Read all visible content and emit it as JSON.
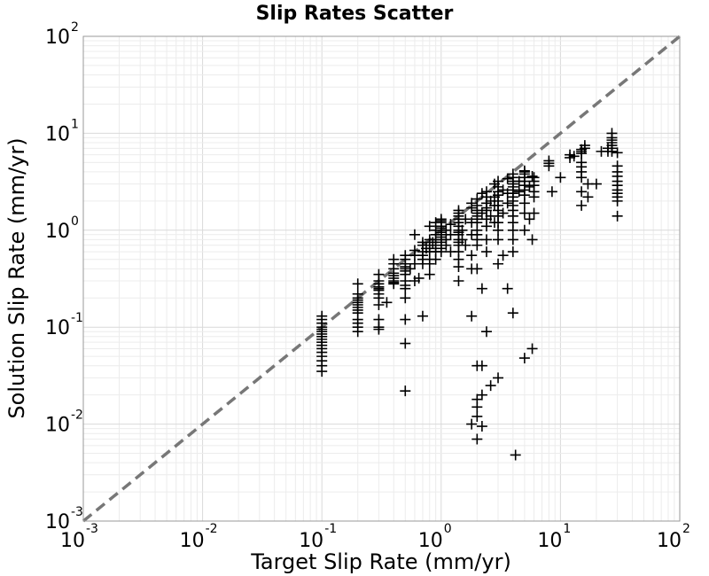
{
  "chart_data": {
    "type": "scatter",
    "title": "Slip Rates Scatter",
    "xlabel": "Target Slip Rate (mm/yr)",
    "ylabel": "Solution Slip Rate (mm/yr)",
    "xscale": "log",
    "yscale": "log",
    "xlim": [
      0.001,
      100
    ],
    "ylim": [
      0.001,
      100
    ],
    "grid": true,
    "marker": "plus",
    "marker_color": "#000000",
    "reference_line_color": "#777777",
    "reference_line": {
      "style": "dashed",
      "points": [
        [
          0.001,
          0.001
        ],
        [
          100,
          100
        ]
      ]
    },
    "x_ticks": [
      {
        "base": "10",
        "exp": "-3"
      },
      {
        "base": "10",
        "exp": "-2"
      },
      {
        "base": "10",
        "exp": "-1"
      },
      {
        "base": "10",
        "exp": "0"
      },
      {
        "base": "10",
        "exp": "1"
      },
      {
        "base": "10",
        "exp": "2"
      }
    ],
    "y_ticks": [
      {
        "base": "10",
        "exp": "-3"
      },
      {
        "base": "10",
        "exp": "-2"
      },
      {
        "base": "10",
        "exp": "-1"
      },
      {
        "base": "10",
        "exp": "0"
      },
      {
        "base": "10",
        "exp": "1"
      },
      {
        "base": "10",
        "exp": "2"
      }
    ],
    "points": [
      [
        0.1,
        0.13
      ],
      [
        0.1,
        0.12
      ],
      [
        0.1,
        0.11
      ],
      [
        0.1,
        0.1
      ],
      [
        0.1,
        0.095
      ],
      [
        0.1,
        0.09
      ],
      [
        0.1,
        0.085
      ],
      [
        0.1,
        0.08
      ],
      [
        0.1,
        0.075
      ],
      [
        0.1,
        0.07
      ],
      [
        0.1,
        0.065
      ],
      [
        0.1,
        0.06
      ],
      [
        0.1,
        0.055
      ],
      [
        0.1,
        0.05
      ],
      [
        0.1,
        0.045
      ],
      [
        0.1,
        0.04
      ],
      [
        0.1,
        0.035
      ],
      [
        0.2,
        0.28
      ],
      [
        0.2,
        0.22
      ],
      [
        0.2,
        0.2
      ],
      [
        0.2,
        0.19
      ],
      [
        0.2,
        0.18
      ],
      [
        0.2,
        0.17
      ],
      [
        0.2,
        0.16
      ],
      [
        0.2,
        0.15
      ],
      [
        0.2,
        0.14
      ],
      [
        0.2,
        0.12
      ],
      [
        0.2,
        0.11
      ],
      [
        0.2,
        0.1
      ],
      [
        0.2,
        0.09
      ],
      [
        0.3,
        0.35
      ],
      [
        0.3,
        0.3
      ],
      [
        0.3,
        0.28
      ],
      [
        0.3,
        0.26
      ],
      [
        0.3,
        0.25
      ],
      [
        0.3,
        0.24
      ],
      [
        0.3,
        0.22
      ],
      [
        0.3,
        0.2
      ],
      [
        0.3,
        0.17
      ],
      [
        0.3,
        0.12
      ],
      [
        0.3,
        0.1
      ],
      [
        0.3,
        0.095
      ],
      [
        0.35,
        0.18
      ],
      [
        0.4,
        0.5
      ],
      [
        0.4,
        0.45
      ],
      [
        0.4,
        0.4
      ],
      [
        0.4,
        0.36
      ],
      [
        0.4,
        0.34
      ],
      [
        0.4,
        0.32
      ],
      [
        0.4,
        0.3
      ],
      [
        0.4,
        0.29
      ],
      [
        0.4,
        0.28
      ],
      [
        0.5,
        0.55
      ],
      [
        0.5,
        0.5
      ],
      [
        0.5,
        0.45
      ],
      [
        0.5,
        0.42
      ],
      [
        0.5,
        0.4
      ],
      [
        0.5,
        0.38
      ],
      [
        0.5,
        0.35
      ],
      [
        0.5,
        0.3
      ],
      [
        0.5,
        0.27
      ],
      [
        0.5,
        0.25
      ],
      [
        0.5,
        0.2
      ],
      [
        0.5,
        0.12
      ],
      [
        0.5,
        0.068
      ],
      [
        0.5,
        0.022
      ],
      [
        0.55,
        0.4
      ],
      [
        0.6,
        0.9
      ],
      [
        0.6,
        0.62
      ],
      [
        0.6,
        0.55
      ],
      [
        0.6,
        0.45
      ],
      [
        0.6,
        0.3
      ],
      [
        0.65,
        0.32
      ],
      [
        0.7,
        0.75
      ],
      [
        0.7,
        0.7
      ],
      [
        0.7,
        0.6
      ],
      [
        0.7,
        0.55
      ],
      [
        0.7,
        0.5
      ],
      [
        0.7,
        0.45
      ],
      [
        0.7,
        0.13
      ],
      [
        0.75,
        0.65
      ],
      [
        0.8,
        1.1
      ],
      [
        0.8,
        0.8
      ],
      [
        0.8,
        0.7
      ],
      [
        0.8,
        0.65
      ],
      [
        0.8,
        0.6
      ],
      [
        0.8,
        0.5
      ],
      [
        0.8,
        0.45
      ],
      [
        0.8,
        0.35
      ],
      [
        0.85,
        0.75
      ],
      [
        0.9,
        1.2
      ],
      [
        0.9,
        1.0
      ],
      [
        0.9,
        0.9
      ],
      [
        0.9,
        0.8
      ],
      [
        0.9,
        0.7
      ],
      [
        0.9,
        0.6
      ],
      [
        0.9,
        0.5
      ],
      [
        1.0,
        1.3
      ],
      [
        1.0,
        1.25
      ],
      [
        1.0,
        1.2
      ],
      [
        1.0,
        1.1
      ],
      [
        1.0,
        1.05
      ],
      [
        1.0,
        1.0
      ],
      [
        1.0,
        0.95
      ],
      [
        1.0,
        0.9
      ],
      [
        1.0,
        0.85
      ],
      [
        1.0,
        0.8
      ],
      [
        1.0,
        0.75
      ],
      [
        1.0,
        0.7
      ],
      [
        1.0,
        0.65
      ],
      [
        1.0,
        0.6
      ],
      [
        1.1,
        1.0
      ],
      [
        1.1,
        0.8
      ],
      [
        1.1,
        0.7
      ],
      [
        1.2,
        1.15
      ],
      [
        1.2,
        0.9
      ],
      [
        1.2,
        0.6
      ],
      [
        1.4,
        1.6
      ],
      [
        1.4,
        1.5
      ],
      [
        1.4,
        1.4
      ],
      [
        1.4,
        1.3
      ],
      [
        1.4,
        1.2
      ],
      [
        1.4,
        1.1
      ],
      [
        1.4,
        1.0
      ],
      [
        1.4,
        0.95
      ],
      [
        1.4,
        0.9
      ],
      [
        1.4,
        0.8
      ],
      [
        1.4,
        0.75
      ],
      [
        1.4,
        0.7
      ],
      [
        1.4,
        0.6
      ],
      [
        1.4,
        0.5
      ],
      [
        1.4,
        0.42
      ],
      [
        1.4,
        0.3
      ],
      [
        1.5,
        1.0
      ],
      [
        1.5,
        0.8
      ],
      [
        1.6,
        1.3
      ],
      [
        1.6,
        0.7
      ],
      [
        1.8,
        1.9
      ],
      [
        1.8,
        1.7
      ],
      [
        1.8,
        1.2
      ],
      [
        1.8,
        0.9
      ],
      [
        1.8,
        0.55
      ],
      [
        1.8,
        0.4
      ],
      [
        1.8,
        0.13
      ],
      [
        1.8,
        0.01
      ],
      [
        2.0,
        2.1
      ],
      [
        2.0,
        1.8
      ],
      [
        2.0,
        1.6
      ],
      [
        2.0,
        1.5
      ],
      [
        2.0,
        1.4
      ],
      [
        2.0,
        1.3
      ],
      [
        2.0,
        1.2
      ],
      [
        2.0,
        1.0
      ],
      [
        2.0,
        0.9
      ],
      [
        2.0,
        0.8
      ],
      [
        2.0,
        0.7
      ],
      [
        2.0,
        0.4
      ],
      [
        2.0,
        0.04
      ],
      [
        2.0,
        0.018
      ],
      [
        2.0,
        0.015
      ],
      [
        2.0,
        0.012
      ],
      [
        2.0,
        0.007
      ],
      [
        2.2,
        2.4
      ],
      [
        2.2,
        1.5
      ],
      [
        2.2,
        0.25
      ],
      [
        2.2,
        0.04
      ],
      [
        2.2,
        0.02
      ],
      [
        2.2,
        0.0095
      ],
      [
        2.4,
        2.5
      ],
      [
        2.4,
        2.2
      ],
      [
        2.4,
        1.9
      ],
      [
        2.4,
        1.7
      ],
      [
        2.4,
        1.6
      ],
      [
        2.4,
        1.3
      ],
      [
        2.4,
        1.1
      ],
      [
        2.4,
        0.8
      ],
      [
        2.4,
        0.6
      ],
      [
        2.4,
        0.09
      ],
      [
        2.6,
        2.0
      ],
      [
        2.6,
        1.4
      ],
      [
        2.6,
        0.025
      ],
      [
        2.8,
        3.0
      ],
      [
        2.8,
        2.2
      ],
      [
        2.8,
        1.8
      ],
      [
        2.8,
        1.2
      ],
      [
        3.0,
        3.2
      ],
      [
        3.0,
        2.8
      ],
      [
        3.0,
        2.5
      ],
      [
        3.0,
        2.3
      ],
      [
        3.0,
        2.0
      ],
      [
        3.0,
        1.8
      ],
      [
        3.0,
        1.6
      ],
      [
        3.0,
        1.4
      ],
      [
        3.0,
        1.2
      ],
      [
        3.0,
        1.0
      ],
      [
        3.0,
        0.8
      ],
      [
        3.0,
        0.45
      ],
      [
        3.0,
        0.03
      ],
      [
        3.3,
        2.6
      ],
      [
        3.3,
        1.5
      ],
      [
        3.3,
        0.55
      ],
      [
        3.6,
        3.4
      ],
      [
        3.6,
        2.4
      ],
      [
        3.6,
        1.9
      ],
      [
        3.6,
        0.25
      ],
      [
        4.0,
        3.8
      ],
      [
        4.0,
        3.5
      ],
      [
        4.0,
        3.2
      ],
      [
        4.0,
        3.0
      ],
      [
        4.0,
        2.8
      ],
      [
        4.0,
        2.6
      ],
      [
        4.0,
        2.4
      ],
      [
        4.0,
        2.2
      ],
      [
        4.0,
        2.0
      ],
      [
        4.0,
        1.8
      ],
      [
        4.0,
        1.6
      ],
      [
        4.0,
        1.4
      ],
      [
        4.0,
        1.2
      ],
      [
        4.0,
        1.0
      ],
      [
        4.0,
        0.8
      ],
      [
        4.0,
        0.6
      ],
      [
        4.0,
        0.14
      ],
      [
        4.2,
        0.0048
      ],
      [
        4.5,
        3.2
      ],
      [
        4.5,
        2.5
      ],
      [
        5.0,
        4.1
      ],
      [
        5.0,
        4.0
      ],
      [
        5.0,
        3.8
      ],
      [
        5.0,
        3.5
      ],
      [
        5.0,
        3.2
      ],
      [
        5.0,
        2.9
      ],
      [
        5.0,
        2.6
      ],
      [
        5.0,
        2.3
      ],
      [
        5.0,
        1.9
      ],
      [
        5.0,
        1.5
      ],
      [
        5.0,
        1.0
      ],
      [
        5.0,
        0.048
      ],
      [
        5.5,
        2.8
      ],
      [
        5.5,
        1.3
      ],
      [
        5.8,
        3.6
      ],
      [
        5.8,
        0.8
      ],
      [
        5.8,
        0.06
      ],
      [
        6.0,
        3.5
      ],
      [
        6.0,
        3.2
      ],
      [
        6.0,
        2.9
      ],
      [
        6.0,
        2.5
      ],
      [
        6.0,
        2.2
      ],
      [
        6.0,
        1.5
      ],
      [
        8.0,
        5.2
      ],
      [
        8.0,
        4.9
      ],
      [
        8.0,
        4.6
      ],
      [
        8.5,
        2.5
      ],
      [
        10.0,
        3.5
      ],
      [
        12.0,
        6.0
      ],
      [
        12.0,
        5.6
      ],
      [
        13.0,
        5.8
      ],
      [
        15.0,
        6.8
      ],
      [
        15.0,
        6.5
      ],
      [
        15.0,
        6.2
      ],
      [
        15.0,
        5.0
      ],
      [
        15.0,
        4.5
      ],
      [
        15.0,
        4.0
      ],
      [
        15.0,
        3.5
      ],
      [
        15.0,
        2.5
      ],
      [
        15.0,
        1.8
      ],
      [
        16.0,
        7.5
      ],
      [
        16.0,
        7.0
      ],
      [
        17.0,
        3.0
      ],
      [
        17.0,
        2.2
      ],
      [
        20.0,
        3.0
      ],
      [
        22.0,
        6.5
      ],
      [
        25.0,
        7.0
      ],
      [
        25.0,
        6.5
      ],
      [
        27.0,
        10.0
      ],
      [
        27.0,
        9.0
      ],
      [
        27.0,
        8.5
      ],
      [
        27.0,
        8.0
      ],
      [
        27.0,
        7.5
      ],
      [
        27.0,
        7.0
      ],
      [
        27.0,
        6.5
      ],
      [
        30.0,
        6.3
      ],
      [
        30.0,
        4.6
      ],
      [
        30.0,
        4.0
      ],
      [
        30.0,
        3.6
      ],
      [
        30.0,
        3.2
      ],
      [
        30.0,
        2.9
      ],
      [
        30.0,
        2.6
      ],
      [
        30.0,
        2.4
      ],
      [
        30.0,
        2.2
      ],
      [
        30.0,
        2.0
      ],
      [
        30.0,
        1.4
      ]
    ]
  }
}
